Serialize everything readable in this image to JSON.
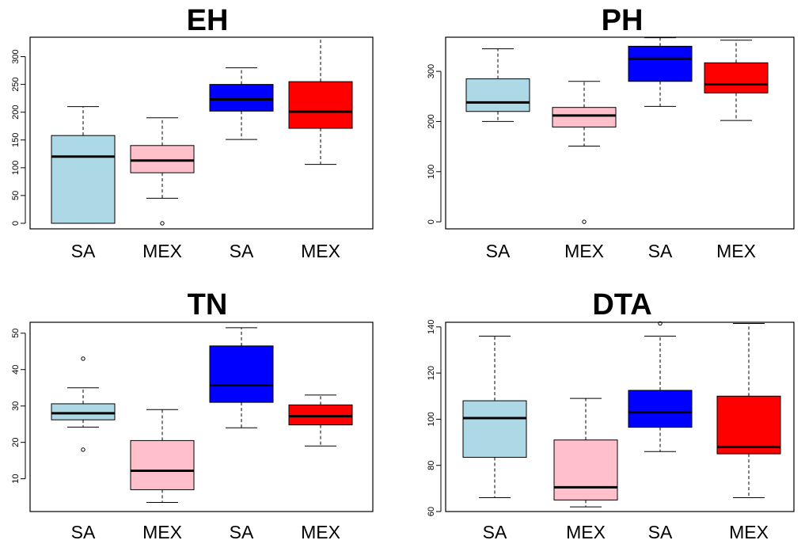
{
  "chart_data": [
    {
      "type": "box",
      "title": "EH",
      "categories": [
        "SA",
        "MEX",
        "SA",
        "MEX"
      ],
      "ylim": [
        -10,
        335
      ],
      "yticks": [
        0,
        50,
        100,
        150,
        200,
        250,
        300
      ],
      "colors": [
        "#add8e6",
        "#ffc0cb",
        "#0000ff",
        "#ff0000"
      ],
      "boxes": [
        {
          "whisker_low": 0,
          "q1": 0,
          "median": 120,
          "q3": 158,
          "whisker_high": 210,
          "outliers": []
        },
        {
          "whisker_low": 45,
          "q1": 91,
          "median": 113,
          "q3": 140,
          "whisker_high": 190,
          "outliers": [
            0
          ]
        },
        {
          "whisker_low": 151,
          "q1": 202,
          "median": 223,
          "q3": 250,
          "whisker_high": 280,
          "outliers": []
        },
        {
          "whisker_low": 106,
          "q1": 171,
          "median": 201,
          "q3": 255,
          "whisker_high": 335,
          "outliers": []
        }
      ]
    },
    {
      "type": "box",
      "title": "PH",
      "categories": [
        "SA",
        "MEX",
        "SA",
        "MEX"
      ],
      "ylim": [
        -14,
        368
      ],
      "yticks": [
        0,
        100,
        200,
        300
      ],
      "colors": [
        "#add8e6",
        "#ffc0cb",
        "#0000ff",
        "#ff0000"
      ],
      "boxes": [
        {
          "whisker_low": 200,
          "q1": 220,
          "median": 238,
          "q3": 285,
          "whisker_high": 345,
          "outliers": []
        },
        {
          "whisker_low": 151,
          "q1": 189,
          "median": 212,
          "q3": 228,
          "whisker_high": 280,
          "outliers": [
            0
          ]
        },
        {
          "whisker_low": 230,
          "q1": 280,
          "median": 325,
          "q3": 350,
          "whisker_high": 367,
          "outliers": []
        },
        {
          "whisker_low": 202,
          "q1": 257,
          "median": 274,
          "q3": 317,
          "whisker_high": 362,
          "outliers": []
        }
      ]
    },
    {
      "type": "box",
      "title": "TN",
      "categories": [
        "SA",
        "MEX",
        "SA",
        "MEX"
      ],
      "ylim": [
        1,
        53
      ],
      "yticks": [
        10,
        20,
        30,
        40,
        50
      ],
      "colors": [
        "#add8e6",
        "#ffc0cb",
        "#0000ff",
        "#ff0000"
      ],
      "boxes": [
        {
          "whisker_low": 24.2,
          "q1": 26.2,
          "median": 28.0,
          "q3": 30.6,
          "whisker_high": 35.0,
          "outliers": [
            18,
            43
          ]
        },
        {
          "whisker_low": 3.5,
          "q1": 7.0,
          "median": 12.2,
          "q3": 20.5,
          "whisker_high": 29.0,
          "outliers": []
        },
        {
          "whisker_low": 24.0,
          "q1": 31.0,
          "median": 35.7,
          "q3": 46.5,
          "whisker_high": 51.5,
          "outliers": []
        },
        {
          "whisker_low": 19.0,
          "q1": 24.8,
          "median": 27.2,
          "q3": 30.3,
          "whisker_high": 33.0,
          "outliers": []
        }
      ]
    },
    {
      "type": "box",
      "title": "DTA",
      "categories": [
        "SA",
        "MEX",
        "SA",
        "MEX"
      ],
      "ylim": [
        60,
        142
      ],
      "yticks": [
        60,
        80,
        100,
        120,
        140
      ],
      "colors": [
        "#add8e6",
        "#ffc0cb",
        "#0000ff",
        "#ff0000"
      ],
      "boxes": [
        {
          "whisker_low": 66,
          "q1": 83.5,
          "median": 100.5,
          "q3": 108,
          "whisker_high": 136,
          "outliers": []
        },
        {
          "whisker_low": 62,
          "q1": 65,
          "median": 70.5,
          "q3": 91,
          "whisker_high": 109,
          "outliers": []
        },
        {
          "whisker_low": 86,
          "q1": 96.5,
          "median": 103,
          "q3": 112.5,
          "whisker_high": 136,
          "outliers": [
            141.5
          ]
        },
        {
          "whisker_low": 66,
          "q1": 85,
          "median": 88,
          "q3": 110,
          "whisker_high": 141.5,
          "outliers": []
        }
      ]
    }
  ]
}
